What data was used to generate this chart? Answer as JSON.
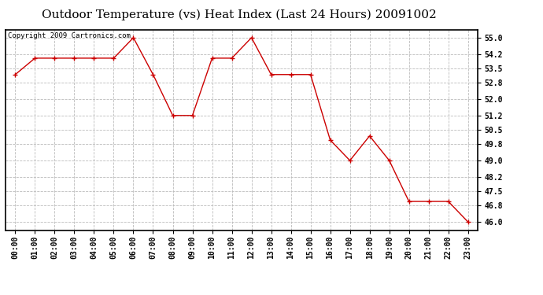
{
  "title": "Outdoor Temperature (vs) Heat Index (Last 24 Hours) 20091002",
  "copyright": "Copyright 2009 Cartronics.com",
  "x_labels": [
    "00:00",
    "01:00",
    "02:00",
    "03:00",
    "04:00",
    "05:00",
    "06:00",
    "07:00",
    "08:00",
    "09:00",
    "10:00",
    "11:00",
    "12:00",
    "13:00",
    "14:00",
    "15:00",
    "16:00",
    "17:00",
    "18:00",
    "19:00",
    "20:00",
    "21:00",
    "22:00",
    "23:00"
  ],
  "y_values": [
    53.2,
    54.0,
    54.0,
    54.0,
    54.0,
    54.0,
    55.0,
    53.2,
    51.2,
    51.2,
    54.0,
    54.0,
    55.0,
    53.2,
    53.2,
    53.2,
    50.0,
    49.0,
    50.2,
    49.0,
    47.0,
    47.0,
    47.0,
    46.0
  ],
  "line_color": "#cc0000",
  "marker": "+",
  "marker_color": "#cc0000",
  "bg_color": "#ffffff",
  "grid_color": "#bbbbbb",
  "ylim_min": 45.6,
  "ylim_max": 55.4,
  "yticks": [
    46.0,
    46.8,
    47.5,
    48.2,
    49.0,
    49.8,
    50.5,
    51.2,
    52.0,
    52.8,
    53.5,
    54.2,
    55.0
  ],
  "title_fontsize": 11,
  "tick_fontsize": 7,
  "copyright_fontsize": 6.5
}
